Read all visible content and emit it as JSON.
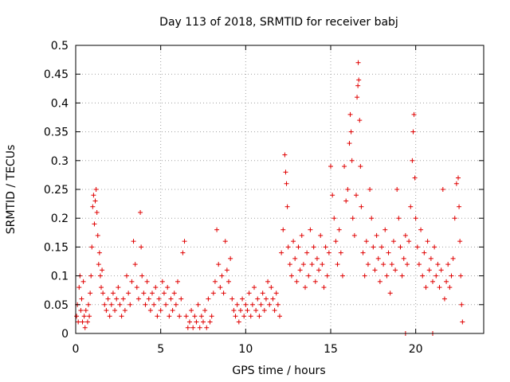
{
  "chart_data": {
    "type": "scatter",
    "title": "Day 113 of 2018, SRMTID for receiver babj",
    "xlabel": "GPS time / hours",
    "ylabel": "SRMTID / TECUs",
    "xlim": [
      0,
      24
    ],
    "ylim": [
      0,
      0.5
    ],
    "xticks": [
      0,
      5,
      10,
      15,
      20
    ],
    "xtick_labels": [
      "0",
      "5",
      "10",
      "15",
      "20"
    ],
    "yticks": [
      0,
      0.05,
      0.1,
      0.15,
      0.2,
      0.25,
      0.3,
      0.35,
      0.4,
      0.45,
      0.5
    ],
    "ytick_labels": [
      "0",
      "0.05",
      "0.1",
      "0.15",
      "0.2",
      "0.25",
      "0.3",
      "0.35",
      "0.4",
      "0.45",
      "0.5"
    ],
    "grid": true,
    "marker": "+",
    "color": "#e00000",
    "series": [
      {
        "name": "SRMTID",
        "points": [
          [
            0.05,
            0.03
          ],
          [
            0.1,
            0.05
          ],
          [
            0.15,
            0.02
          ],
          [
            0.2,
            0.08
          ],
          [
            0.25,
            0.1
          ],
          [
            0.3,
            0.04
          ],
          [
            0.35,
            0.06
          ],
          [
            0.4,
            0.02
          ],
          [
            0.45,
            0.09
          ],
          [
            0.5,
            0.03
          ],
          [
            0.55,
            0.01
          ],
          [
            0.6,
            0.04
          ],
          [
            0.7,
            0.02
          ],
          [
            0.75,
            0.05
          ],
          [
            0.8,
            0.03
          ],
          [
            0.85,
            0.07
          ],
          [
            0.9,
            0.1
          ],
          [
            0.95,
            0.15
          ],
          [
            1.0,
            0.22
          ],
          [
            1.05,
            0.24
          ],
          [
            1.1,
            0.19
          ],
          [
            1.15,
            0.23
          ],
          [
            1.2,
            0.25
          ],
          [
            1.25,
            0.21
          ],
          [
            1.3,
            0.17
          ],
          [
            1.35,
            0.12
          ],
          [
            1.4,
            0.14
          ],
          [
            1.45,
            0.1
          ],
          [
            1.5,
            0.08
          ],
          [
            1.55,
            0.11
          ],
          [
            1.6,
            0.07
          ],
          [
            1.7,
            0.05
          ],
          [
            1.8,
            0.04
          ],
          [
            1.9,
            0.06
          ],
          [
            2.0,
            0.03
          ],
          [
            2.1,
            0.05
          ],
          [
            2.2,
            0.07
          ],
          [
            2.3,
            0.04
          ],
          [
            2.4,
            0.06
          ],
          [
            2.5,
            0.08
          ],
          [
            2.6,
            0.05
          ],
          [
            2.7,
            0.03
          ],
          [
            2.8,
            0.06
          ],
          [
            2.9,
            0.04
          ],
          [
            3.0,
            0.1
          ],
          [
            3.1,
            0.07
          ],
          [
            3.2,
            0.05
          ],
          [
            3.3,
            0.09
          ],
          [
            3.4,
            0.16
          ],
          [
            3.5,
            0.12
          ],
          [
            3.6,
            0.08
          ],
          [
            3.7,
            0.06
          ],
          [
            3.8,
            0.21
          ],
          [
            3.85,
            0.15
          ],
          [
            3.9,
            0.1
          ],
          [
            4.0,
            0.07
          ],
          [
            4.1,
            0.05
          ],
          [
            4.2,
            0.09
          ],
          [
            4.3,
            0.06
          ],
          [
            4.4,
            0.04
          ],
          [
            4.5,
            0.07
          ],
          [
            4.6,
            0.05
          ],
          [
            4.7,
            0.08
          ],
          [
            4.8,
            0.03
          ],
          [
            4.9,
            0.06
          ],
          [
            5.0,
            0.04
          ],
          [
            5.1,
            0.09
          ],
          [
            5.2,
            0.07
          ],
          [
            5.3,
            0.05
          ],
          [
            5.4,
            0.08
          ],
          [
            5.5,
            0.03
          ],
          [
            5.6,
            0.06
          ],
          [
            5.7,
            0.04
          ],
          [
            5.8,
            0.07
          ],
          [
            5.9,
            0.05
          ],
          [
            6.0,
            0.09
          ],
          [
            6.1,
            0.03
          ],
          [
            6.2,
            0.06
          ],
          [
            6.3,
            0.14
          ],
          [
            6.4,
            0.16
          ],
          [
            6.5,
            0.03
          ],
          [
            6.6,
            0.01
          ],
          [
            6.7,
            0.02
          ],
          [
            6.8,
            0.04
          ],
          [
            6.9,
            0.01
          ],
          [
            7.0,
            0.03
          ],
          [
            7.1,
            0.02
          ],
          [
            7.2,
            0.05
          ],
          [
            7.3,
            0.01
          ],
          [
            7.4,
            0.03
          ],
          [
            7.5,
            0.02
          ],
          [
            7.6,
            0.04
          ],
          [
            7.7,
            0.01
          ],
          [
            7.8,
            0.06
          ],
          [
            7.9,
            0.02
          ],
          [
            8.0,
            0.03
          ],
          [
            8.1,
            0.07
          ],
          [
            8.2,
            0.09
          ],
          [
            8.3,
            0.18
          ],
          [
            8.4,
            0.12
          ],
          [
            8.5,
            0.08
          ],
          [
            8.6,
            0.1
          ],
          [
            8.7,
            0.07
          ],
          [
            8.8,
            0.16
          ],
          [
            8.9,
            0.11
          ],
          [
            9.0,
            0.09
          ],
          [
            9.1,
            0.13
          ],
          [
            9.2,
            0.06
          ],
          [
            9.3,
            0.04
          ],
          [
            9.4,
            0.03
          ],
          [
            9.5,
            0.05
          ],
          [
            9.6,
            0.02
          ],
          [
            9.7,
            0.04
          ],
          [
            9.8,
            0.06
          ],
          [
            9.9,
            0.03
          ],
          [
            10.0,
            0.05
          ],
          [
            10.1,
            0.04
          ],
          [
            10.2,
            0.07
          ],
          [
            10.3,
            0.03
          ],
          [
            10.4,
            0.05
          ],
          [
            10.5,
            0.08
          ],
          [
            10.6,
            0.04
          ],
          [
            10.7,
            0.06
          ],
          [
            10.8,
            0.03
          ],
          [
            10.9,
            0.05
          ],
          [
            11.0,
            0.07
          ],
          [
            11.1,
            0.04
          ],
          [
            11.2,
            0.06
          ],
          [
            11.3,
            0.09
          ],
          [
            11.4,
            0.05
          ],
          [
            11.5,
            0.08
          ],
          [
            11.6,
            0.06
          ],
          [
            11.7,
            0.04
          ],
          [
            11.8,
            0.07
          ],
          [
            11.9,
            0.05
          ],
          [
            12.0,
            0.03
          ],
          [
            12.1,
            0.14
          ],
          [
            12.2,
            0.18
          ],
          [
            12.3,
            0.31
          ],
          [
            12.35,
            0.28
          ],
          [
            12.4,
            0.26
          ],
          [
            12.45,
            0.22
          ],
          [
            12.5,
            0.15
          ],
          [
            12.6,
            0.12
          ],
          [
            12.7,
            0.1
          ],
          [
            12.8,
            0.16
          ],
          [
            12.9,
            0.13
          ],
          [
            13.0,
            0.09
          ],
          [
            13.1,
            0.15
          ],
          [
            13.2,
            0.11
          ],
          [
            13.3,
            0.17
          ],
          [
            13.4,
            0.12
          ],
          [
            13.5,
            0.08
          ],
          [
            13.6,
            0.14
          ],
          [
            13.7,
            0.1
          ],
          [
            13.8,
            0.18
          ],
          [
            13.9,
            0.12
          ],
          [
            14.0,
            0.15
          ],
          [
            14.1,
            0.09
          ],
          [
            14.2,
            0.13
          ],
          [
            14.3,
            0.11
          ],
          [
            14.4,
            0.17
          ],
          [
            14.5,
            0.12
          ],
          [
            14.6,
            0.08
          ],
          [
            14.7,
            0.15
          ],
          [
            14.8,
            0.1
          ],
          [
            14.9,
            0.14
          ],
          [
            15.0,
            0.29
          ],
          [
            15.1,
            0.24
          ],
          [
            15.2,
            0.2
          ],
          [
            15.3,
            0.16
          ],
          [
            15.4,
            0.12
          ],
          [
            15.5,
            0.18
          ],
          [
            15.6,
            0.14
          ],
          [
            15.7,
            0.1
          ],
          [
            15.8,
            0.29
          ],
          [
            15.9,
            0.23
          ],
          [
            16.0,
            0.25
          ],
          [
            16.1,
            0.33
          ],
          [
            16.15,
            0.38
          ],
          [
            16.2,
            0.35
          ],
          [
            16.25,
            0.3
          ],
          [
            16.3,
            0.2
          ],
          [
            16.4,
            0.17
          ],
          [
            16.5,
            0.24
          ],
          [
            16.55,
            0.41
          ],
          [
            16.6,
            0.43
          ],
          [
            16.62,
            0.47
          ],
          [
            16.65,
            0.44
          ],
          [
            16.7,
            0.37
          ],
          [
            16.75,
            0.29
          ],
          [
            16.8,
            0.22
          ],
          [
            16.9,
            0.14
          ],
          [
            17.0,
            0.1
          ],
          [
            17.1,
            0.16
          ],
          [
            17.2,
            0.12
          ],
          [
            17.3,
            0.25
          ],
          [
            17.4,
            0.2
          ],
          [
            17.5,
            0.15
          ],
          [
            17.6,
            0.11
          ],
          [
            17.7,
            0.17
          ],
          [
            17.8,
            0.13
          ],
          [
            17.9,
            0.09
          ],
          [
            18.0,
            0.15
          ],
          [
            18.1,
            0.12
          ],
          [
            18.2,
            0.18
          ],
          [
            18.3,
            0.1
          ],
          [
            18.4,
            0.14
          ],
          [
            18.5,
            0.07
          ],
          [
            18.6,
            0.12
          ],
          [
            18.7,
            0.16
          ],
          [
            18.8,
            0.11
          ],
          [
            18.9,
            0.25
          ],
          [
            19.0,
            0.2
          ],
          [
            19.1,
            0.15
          ],
          [
            19.2,
            0.1
          ],
          [
            19.3,
            0.13
          ],
          [
            19.4,
            0.17
          ],
          [
            19.5,
            0.12
          ],
          [
            19.6,
            0.16
          ],
          [
            19.7,
            0.22
          ],
          [
            19.8,
            0.3
          ],
          [
            19.85,
            0.35
          ],
          [
            19.9,
            0.38
          ],
          [
            19.95,
            0.27
          ],
          [
            20.0,
            0.2
          ],
          [
            20.1,
            0.15
          ],
          [
            20.2,
            0.12
          ],
          [
            20.3,
            0.18
          ],
          [
            20.4,
            0.1
          ],
          [
            20.5,
            0.14
          ],
          [
            20.6,
            0.08
          ],
          [
            20.7,
            0.16
          ],
          [
            20.8,
            0.11
          ],
          [
            20.9,
            0.13
          ],
          [
            21.0,
            0.09
          ],
          [
            21.1,
            0.15
          ],
          [
            21.2,
            0.1
          ],
          [
            21.3,
            0.12
          ],
          [
            21.4,
            0.08
          ],
          [
            21.5,
            0.11
          ],
          [
            21.6,
            0.25
          ],
          [
            21.7,
            0.06
          ],
          [
            21.8,
            0.09
          ],
          [
            21.9,
            0.12
          ],
          [
            22.0,
            0.08
          ],
          [
            22.1,
            0.1
          ],
          [
            22.2,
            0.13
          ],
          [
            22.3,
            0.2
          ],
          [
            22.4,
            0.26
          ],
          [
            22.5,
            0.27
          ],
          [
            22.55,
            0.22
          ],
          [
            22.6,
            0.16
          ],
          [
            22.65,
            0.1
          ],
          [
            22.7,
            0.05
          ],
          [
            22.75,
            0.02
          ],
          [
            19.4,
            0.0
          ],
          [
            21.0,
            0.0
          ]
        ]
      }
    ]
  }
}
